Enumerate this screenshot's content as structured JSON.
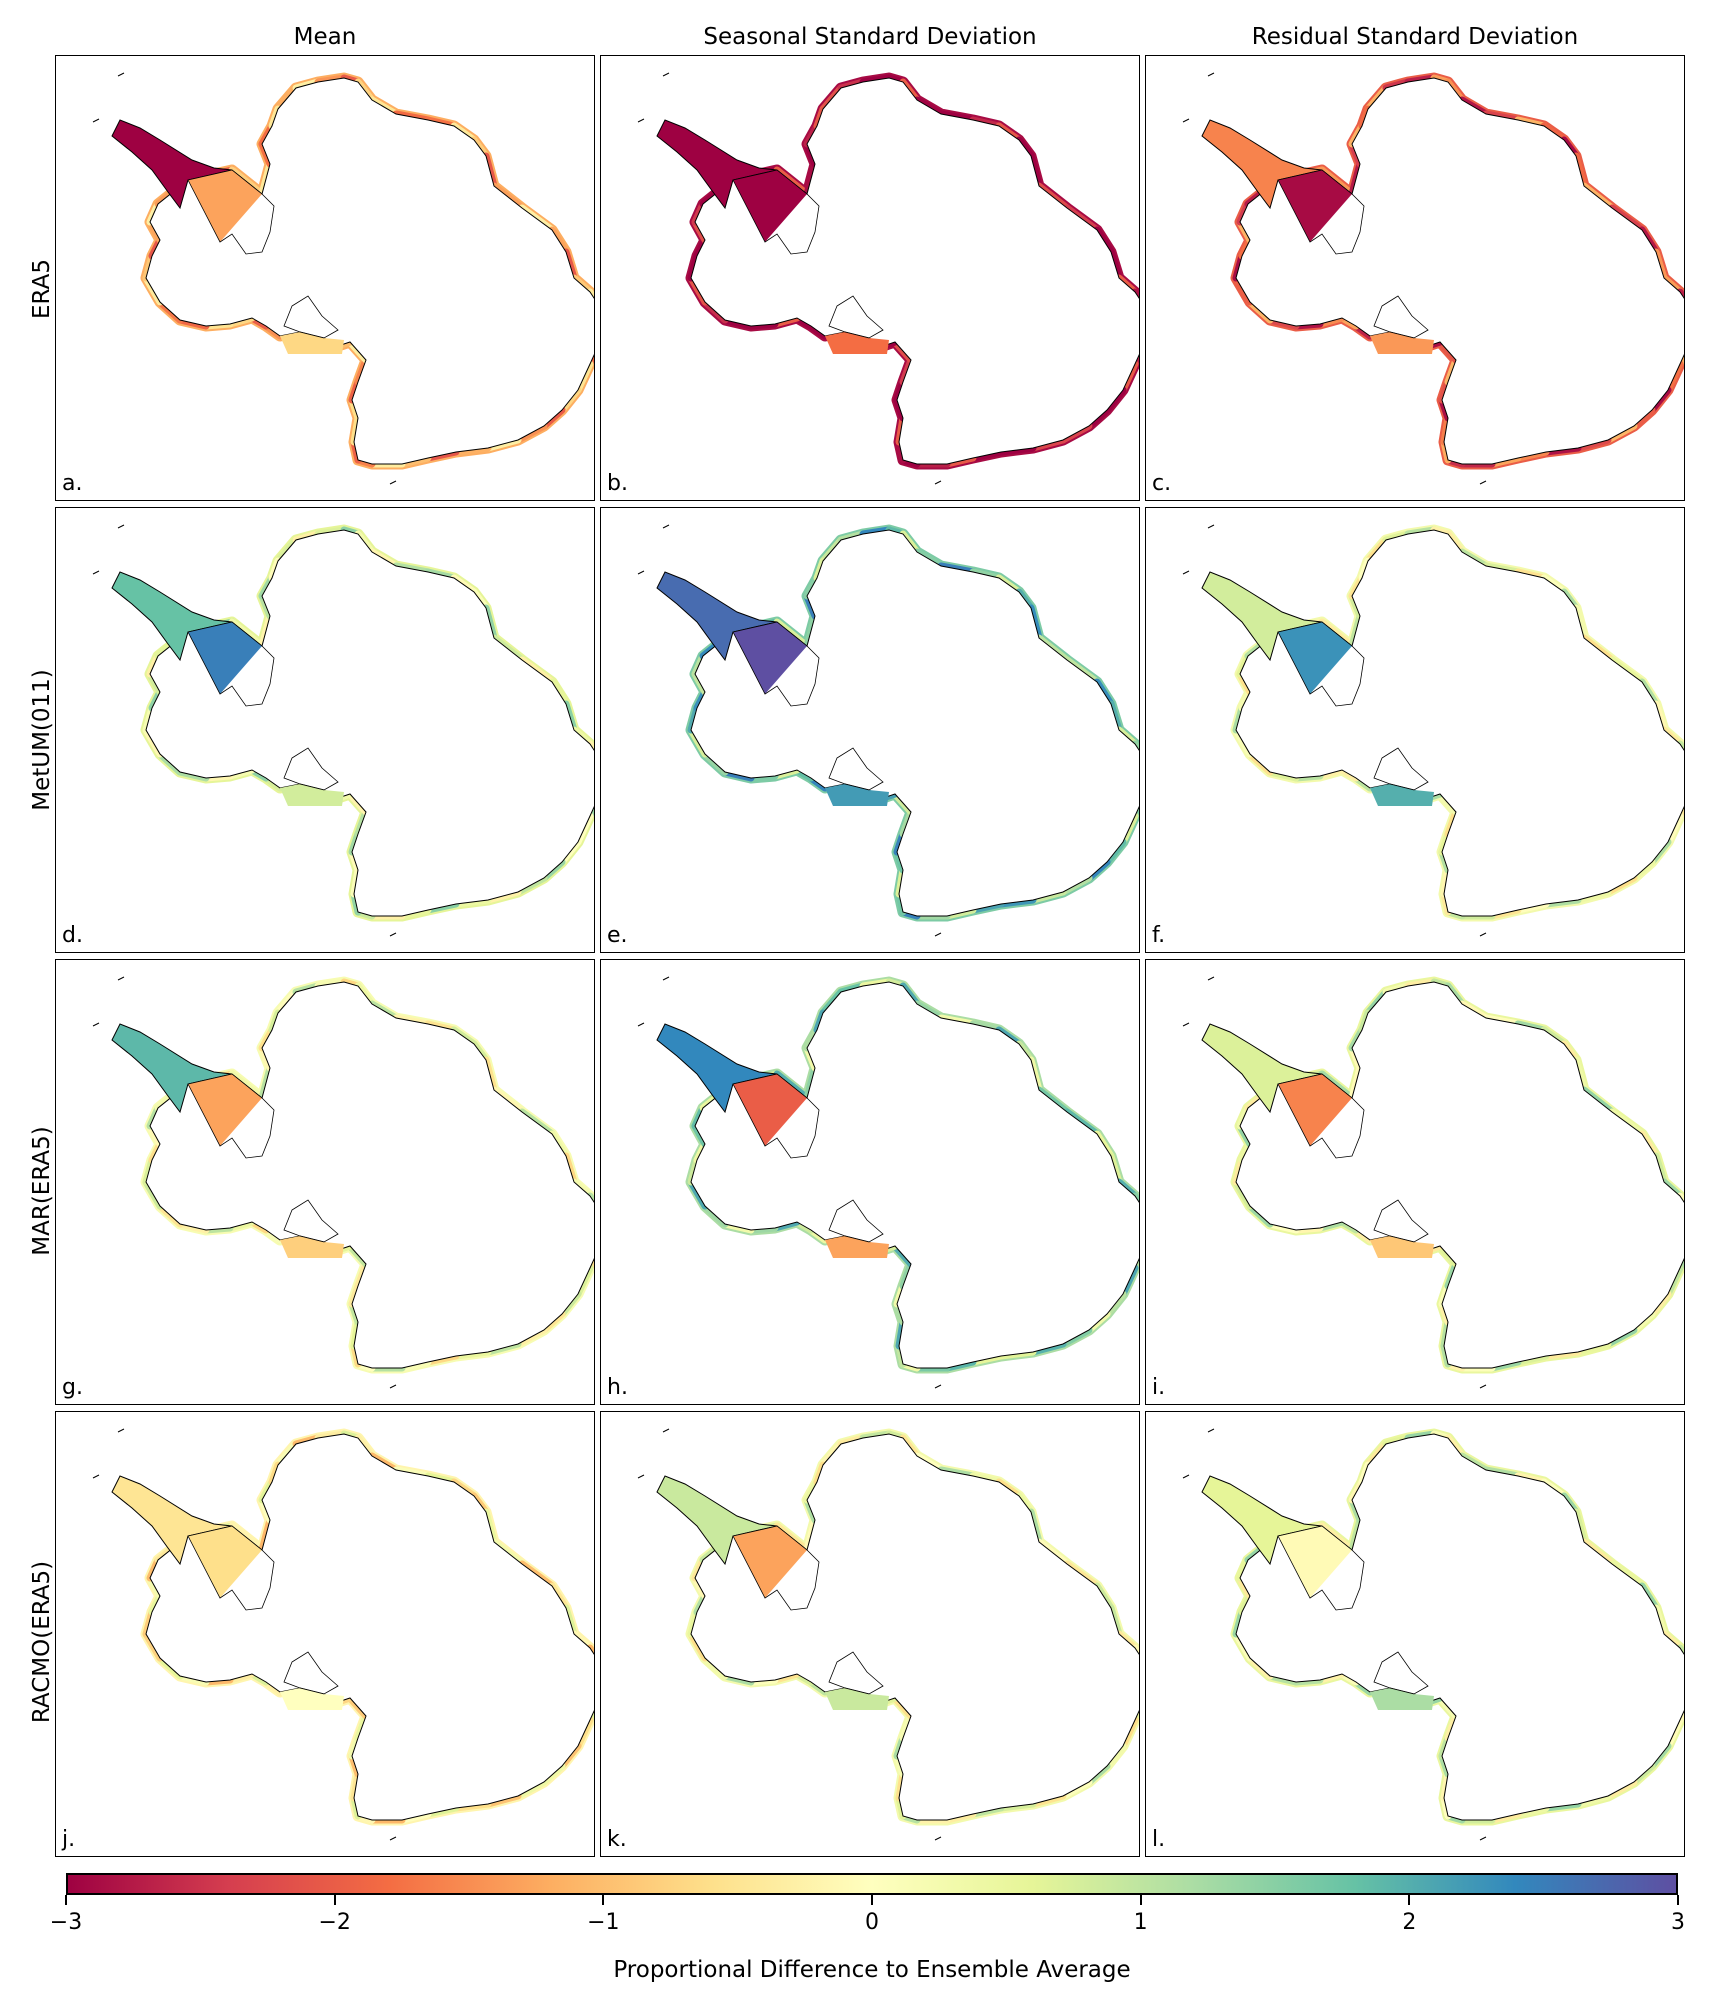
{
  "columns": [
    "Mean",
    "Seasonal Standard Deviation",
    "Residual Standard Deviation"
  ],
  "rows": [
    "ERA5",
    "MetUM(011)",
    "MAR(ERA5)",
    "RACMO(ERA5)"
  ],
  "panel_labels": [
    "a.",
    "b.",
    "c.",
    "d.",
    "e.",
    "f.",
    "g.",
    "h.",
    "i.",
    "j.",
    "k.",
    "l."
  ],
  "panel_scheme": [
    {
      "base": -1.2,
      "peninsula": -3.0,
      "weddell": -1.3,
      "ross": -0.7
    },
    {
      "base": -2.9,
      "peninsula": -3.0,
      "weddell": -3.0,
      "ross": -1.8
    },
    {
      "base": -2.0,
      "peninsula": -1.6,
      "weddell": -2.9,
      "ross": -1.4
    },
    {
      "base": 0.6,
      "peninsula": 1.8,
      "weddell": 2.5,
      "ross": 0.8
    },
    {
      "base": 1.6,
      "peninsula": 2.7,
      "weddell": 3.0,
      "ross": 2.2
    },
    {
      "base": 0.3,
      "peninsula": 0.8,
      "weddell": 2.3,
      "ross": 2.0
    },
    {
      "base": 0.2,
      "peninsula": 1.9,
      "weddell": -1.3,
      "ross": -0.8
    },
    {
      "base": 1.2,
      "peninsula": 2.4,
      "weddell": -2.0,
      "ross": -1.3
    },
    {
      "base": 0.5,
      "peninsula": 0.7,
      "weddell": -1.6,
      "ross": -0.9
    },
    {
      "base": -0.2,
      "peninsula": -0.5,
      "weddell": -0.6,
      "ross": 0.0
    },
    {
      "base": 0.3,
      "peninsula": 0.9,
      "weddell": -1.3,
      "ross": 0.9
    },
    {
      "base": 0.5,
      "peninsula": 0.6,
      "weddell": -0.1,
      "ross": 1.2
    }
  ],
  "colorbar": {
    "min": -3,
    "max": 3,
    "ticks": [
      "−3",
      "−2",
      "−1",
      "0",
      "1",
      "2",
      "3"
    ],
    "tick_values": [
      -3,
      -2,
      -1,
      0,
      1,
      2,
      3
    ],
    "label": "Proportional Difference to Ensemble Average",
    "colormap": "Spectral",
    "stops": [
      "#9e0142",
      "#d53e4f",
      "#f46d43",
      "#fdae61",
      "#fee08b",
      "#ffffbf",
      "#e6f598",
      "#abdda4",
      "#66c2a5",
      "#3288bd",
      "#5e4fa2"
    ]
  }
}
